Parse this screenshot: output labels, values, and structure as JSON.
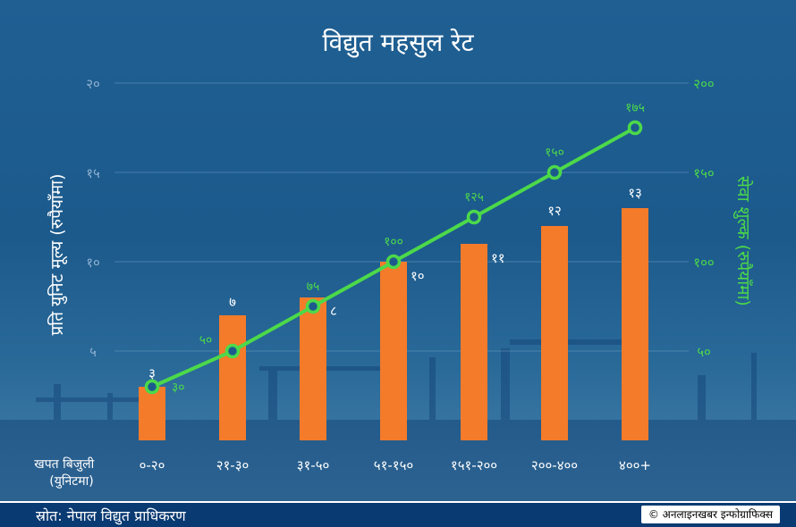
{
  "chart_data": {
    "type": "bar+line",
    "title": "विद्युत महसुल रेट",
    "categories": [
      "०-२०",
      "२१-३०",
      "३१-५०",
      "५१-१५०",
      "१५१-२००",
      "२००-४००",
      "४००+"
    ],
    "xlabel": "खपत बिजुली\n(युनिटमा)",
    "ylabel_left": "प्रति युनिट मूल्य (रुपैयाँमा)",
    "ylabel_right": "सेवा शुल्क (रुपैयाँमा)",
    "yticks_left": [
      "५",
      "१०",
      "१५",
      "२०"
    ],
    "yticks_right": [
      "५०",
      "१००",
      "१५०",
      "२००"
    ],
    "ylim_left": [
      0,
      20
    ],
    "ylim_right": [
      0,
      200
    ],
    "bars": {
      "name": "प्रति युनिट मूल्य",
      "values": [
        3,
        7,
        8,
        10,
        11,
        12,
        13
      ],
      "labels": [
        "३",
        "७",
        "८",
        "१०",
        "११",
        "१२",
        "१३"
      ],
      "color": "#f47b2a"
    },
    "line": {
      "name": "सेवा शुल्क",
      "values": [
        30,
        50,
        75,
        100,
        125,
        150,
        175
      ],
      "labels": [
        "३०",
        "५०",
        "७५",
        "१००",
        "१२५",
        "१५०",
        "१७५"
      ],
      "color": "#4cd94a"
    },
    "grid": true
  },
  "footer": {
    "source": "स्रोत: नेपाल विद्युत प्राधिकरण",
    "credit": "© अनलाइनखबर इन्फोग्राफिक्स"
  }
}
